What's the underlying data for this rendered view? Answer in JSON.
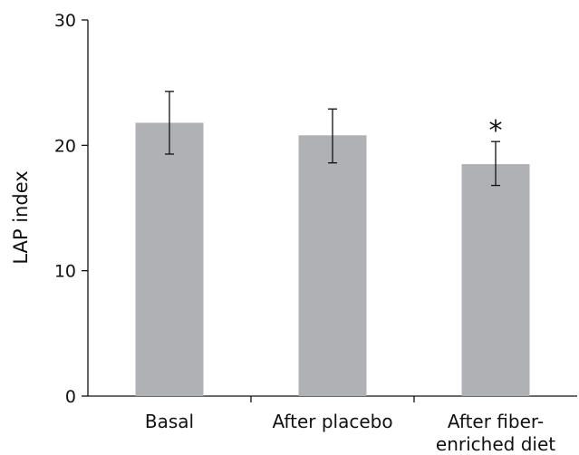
{
  "chart_data": {
    "type": "bar",
    "categories": [
      [
        "Basal"
      ],
      [
        "After placebo"
      ],
      [
        "After fiber-",
        "enriched diet"
      ]
    ],
    "values": [
      21.8,
      20.8,
      18.5
    ],
    "error_upper": [
      24.3,
      22.9,
      20.3
    ],
    "error_lower": [
      19.3,
      18.6,
      16.8
    ],
    "annotations": [
      "",
      "",
      "*"
    ],
    "title": "",
    "xlabel": "",
    "ylabel": "LAP index",
    "ylim": [
      0,
      30
    ],
    "yticks": [
      0,
      10,
      20,
      30
    ],
    "grid": false,
    "colors": {
      "bar": "#b0b1b4",
      "axis": "#111111",
      "text": "#111111"
    }
  }
}
